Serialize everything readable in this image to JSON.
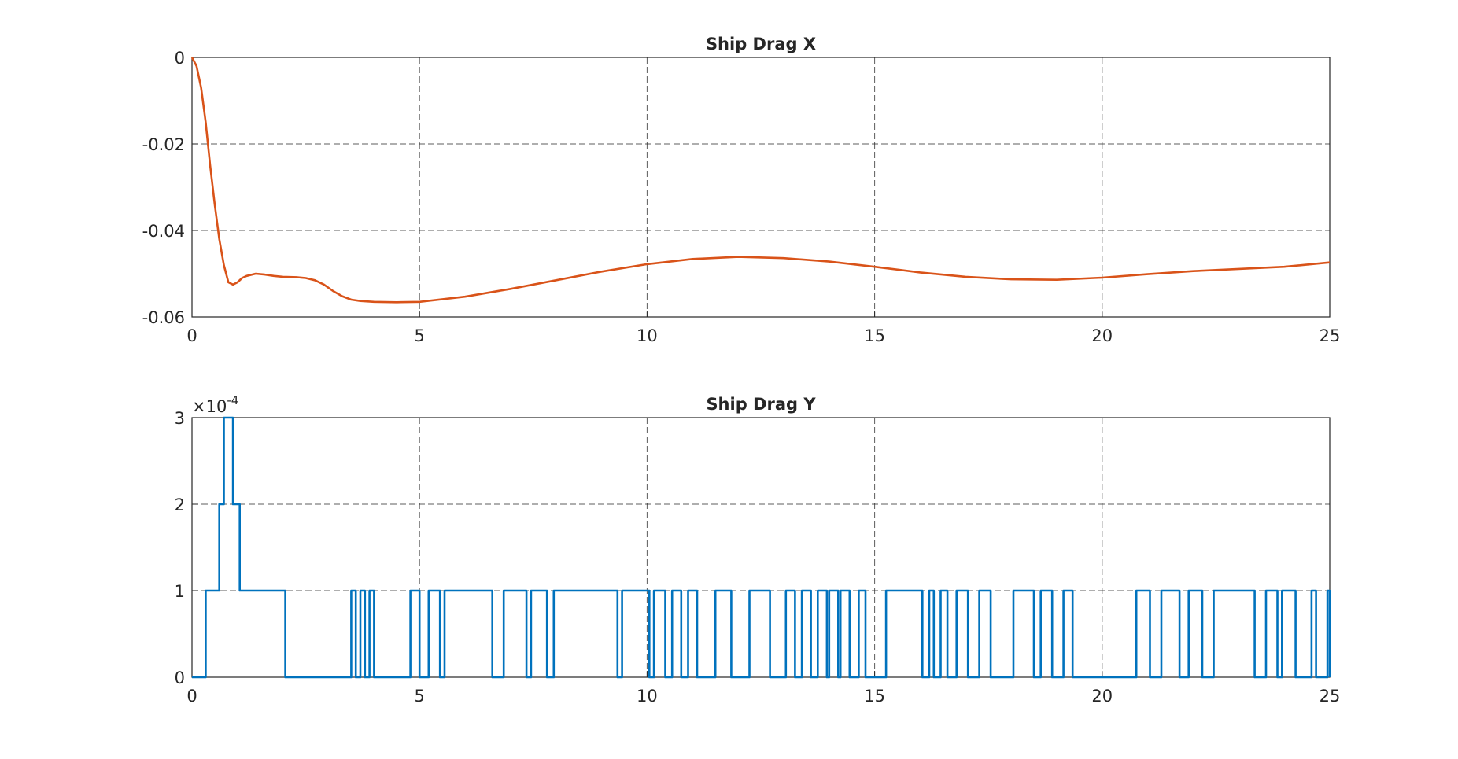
{
  "chart_data": [
    {
      "type": "line",
      "title": "Ship Drag X",
      "xlim": [
        0,
        25
      ],
      "ylim": [
        -0.06,
        0
      ],
      "xticks": [
        "0",
        "5",
        "10",
        "15",
        "20",
        "25"
      ],
      "yticks": [
        "0",
        "-0.02",
        "-0.04",
        "-0.06"
      ],
      "grid": true,
      "series": [
        {
          "color": "#d95319",
          "x": [
            0,
            0.1,
            0.2,
            0.3,
            0.4,
            0.5,
            0.6,
            0.7,
            0.8,
            0.9,
            1.0,
            1.1,
            1.2,
            1.4,
            1.6,
            1.8,
            2.0,
            2.3,
            2.5,
            2.7,
            2.9,
            3.1,
            3.3,
            3.5,
            3.7,
            4.0,
            4.5,
            5.0,
            6.0,
            7.0,
            8.0,
            9.0,
            10.0,
            11.0,
            12.0,
            13.0,
            14.0,
            15.0,
            16.0,
            17.0,
            18.0,
            19.0,
            20.0,
            21.0,
            22.0,
            23.0,
            24.0,
            25.0
          ],
          "y": [
            0,
            -0.002,
            -0.007,
            -0.015,
            -0.025,
            -0.034,
            -0.042,
            -0.048,
            -0.052,
            -0.0525,
            -0.052,
            -0.051,
            -0.0505,
            -0.05,
            -0.0502,
            -0.0505,
            -0.0507,
            -0.0508,
            -0.051,
            -0.0515,
            -0.0525,
            -0.054,
            -0.0552,
            -0.056,
            -0.0563,
            -0.0565,
            -0.0566,
            -0.0565,
            -0.0553,
            -0.0535,
            -0.0515,
            -0.0495,
            -0.0478,
            -0.0466,
            -0.0461,
            -0.0464,
            -0.0472,
            -0.0484,
            -0.0497,
            -0.0507,
            -0.0513,
            -0.0514,
            -0.0509,
            -0.0501,
            -0.0494,
            -0.0489,
            -0.0484,
            -0.0474
          ]
        }
      ]
    },
    {
      "type": "line",
      "title": "Ship Drag Y",
      "xlim": [
        0,
        25
      ],
      "ylim": [
        0,
        3
      ],
      "y_exponent_label": "×10",
      "y_exponent_power": "-4",
      "xticks": [
        "0",
        "5",
        "10",
        "15",
        "20",
        "25"
      ],
      "yticks": [
        "0",
        "1",
        "2",
        "3"
      ],
      "grid": true,
      "series": [
        {
          "color": "#0072bd",
          "step": "post",
          "x": [
            0,
            0.3,
            0.6,
            0.7,
            0.9,
            1.05,
            2.05,
            3.5,
            3.6,
            3.7,
            3.8,
            3.9,
            4.0,
            4.15,
            4.8,
            5.0,
            5.1,
            5.2,
            5.45,
            5.55,
            5.9,
            6.6,
            6.85,
            7.35,
            7.45,
            7.8,
            7.95,
            9.35,
            9.45,
            10.05,
            10.15,
            10.4,
            10.55,
            10.75,
            10.9,
            11.1,
            11.5,
            11.85,
            12.25,
            12.7,
            13.05,
            13.25,
            13.4,
            13.6,
            13.75,
            13.95,
            14.0,
            14.2,
            14.25,
            14.45,
            14.65,
            14.8,
            15.0,
            15.25,
            16.05,
            16.2,
            16.3,
            16.45,
            16.6,
            16.8,
            17.05,
            17.3,
            17.55,
            18.05,
            18.5,
            18.65,
            18.9,
            19.15,
            19.35,
            20.75,
            21.05,
            21.3,
            21.7,
            21.9,
            22.2,
            22.45,
            23.35,
            23.6,
            23.85,
            23.95,
            24.25,
            24.6,
            24.7,
            24.95,
            25.0
          ],
          "y": [
            0,
            1,
            2,
            3,
            2,
            1,
            0,
            1,
            0,
            1,
            0,
            1,
            0,
            0,
            1,
            0,
            0,
            1,
            0,
            1,
            1,
            0,
            1,
            0,
            1,
            0,
            1,
            0,
            1,
            0,
            1,
            0,
            1,
            0,
            1,
            0,
            1,
            0,
            1,
            0,
            1,
            0,
            1,
            0,
            1,
            0,
            1,
            0,
            1,
            0,
            1,
            0,
            0,
            1,
            0,
            1,
            0,
            1,
            0,
            1,
            0,
            1,
            0,
            1,
            0,
            1,
            0,
            1,
            0,
            1,
            0,
            1,
            0,
            1,
            0,
            1,
            0,
            1,
            0,
            1,
            0,
            1,
            0,
            1,
            0
          ]
        }
      ]
    }
  ]
}
